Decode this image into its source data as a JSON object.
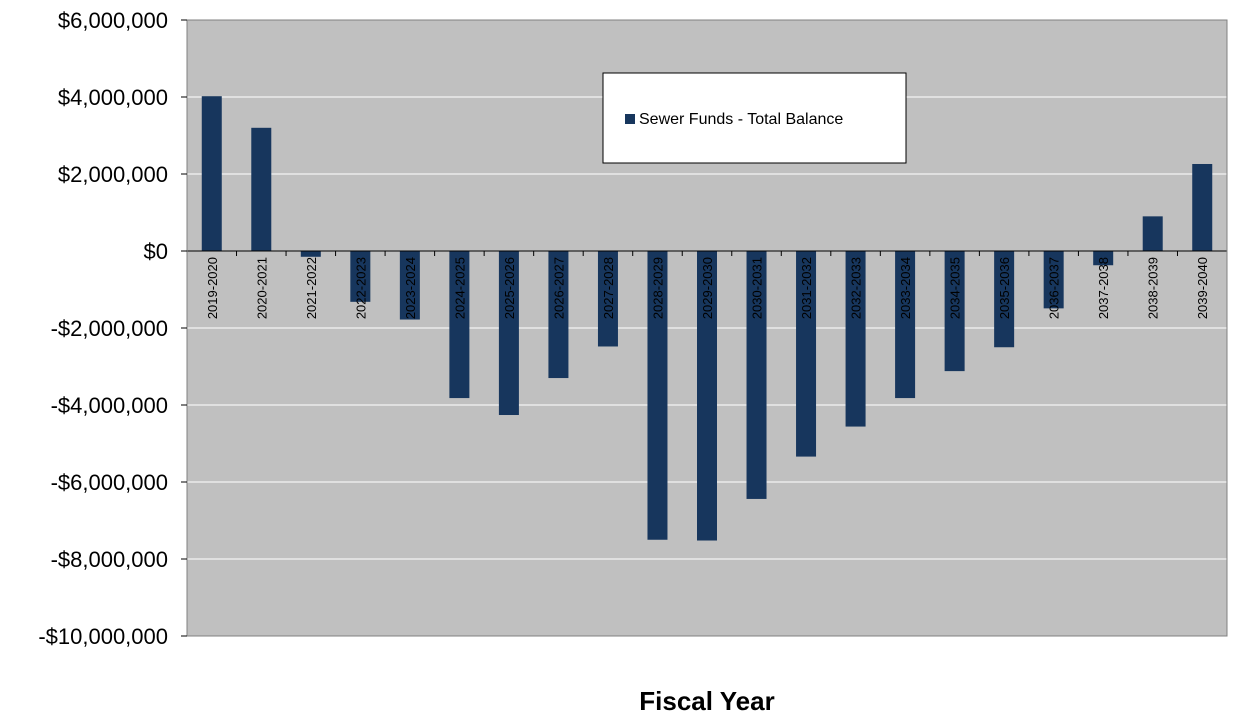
{
  "chart_data": {
    "type": "bar",
    "xlabel": "Fiscal Year",
    "ylabel": "",
    "ylim": [
      -10000000,
      6000000
    ],
    "yticks": [
      6000000,
      4000000,
      2000000,
      0,
      -2000000,
      -4000000,
      -6000000,
      -8000000,
      -10000000
    ],
    "ytick_labels": [
      "$6,000,000",
      "$4,000,000",
      "$2,000,000",
      "$0",
      "-$2,000,000",
      "-$4,000,000",
      "-$6,000,000",
      "-$8,000,000",
      "-$10,000,000"
    ],
    "grid": true,
    "legend_position": "top-center",
    "categories": [
      "2019-2020",
      "2020-2021",
      "2021-2022",
      "2022-2023",
      "2023-2024",
      "2024-2025",
      "2025-2026",
      "2026-2027",
      "2027-2028",
      "2028-2029",
      "2029-2030",
      "2030-2031",
      "2031-2032",
      "2032-2033",
      "2033-2034",
      "2034-2035",
      "2035-2036",
      "2036-2037",
      "2037-2038",
      "2038-2039",
      "2039-2040"
    ],
    "series": [
      {
        "name": "Sewer Funds - Total Balance",
        "color": "#17365d",
        "values": [
          4020000,
          3200000,
          -150000,
          -1320000,
          -1780000,
          -3820000,
          -4260000,
          -3300000,
          -2480000,
          -7500000,
          -7520000,
          -6440000,
          -5340000,
          -4560000,
          -3820000,
          -3120000,
          -2500000,
          -1490000,
          -370000,
          900000,
          2260000
        ]
      }
    ],
    "colors": {
      "plot_background": "#c0c0c0",
      "gridline": "#ffffff",
      "bar": "#17365d"
    }
  }
}
